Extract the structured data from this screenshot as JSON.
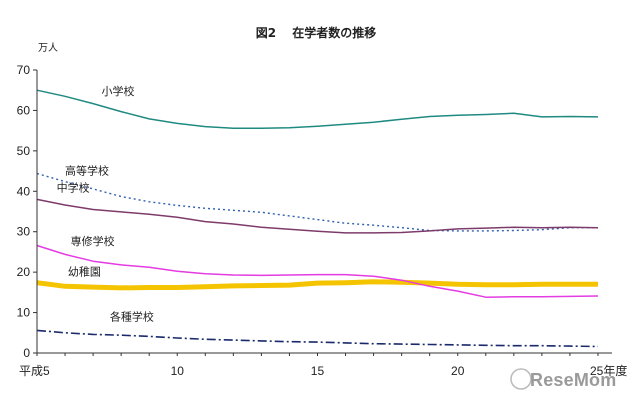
{
  "chart_data": {
    "type": "line",
    "title": "図2　 在学者数の推移",
    "ylabel": "万人",
    "ylim": [
      0,
      70
    ],
    "yticks": [
      "0",
      "10",
      "20",
      "30",
      "40",
      "50",
      "60",
      "70"
    ],
    "x": [
      5,
      6,
      7,
      8,
      9,
      10,
      11,
      12,
      13,
      14,
      15,
      16,
      17,
      18,
      19,
      20,
      21,
      22,
      23,
      24,
      25
    ],
    "xlim": [
      5,
      25.5
    ],
    "xtick_labels": [
      {
        "x": 5,
        "label": "平成5"
      },
      {
        "x": 10,
        "label": "10"
      },
      {
        "x": 15,
        "label": "15"
      },
      {
        "x": 20,
        "label": "20"
      },
      {
        "x": 25,
        "label": "25年度"
      }
    ],
    "series": [
      {
        "name": "小学校",
        "color": "#1f8a82",
        "dash": "solid",
        "width": 1.5,
        "values": [
          65.0,
          63.5,
          61.7,
          59.7,
          57.9,
          56.8,
          56.0,
          55.6,
          55.6,
          55.7,
          56.1,
          56.6,
          57.1,
          57.8,
          58.5,
          58.8,
          59.0,
          59.3,
          58.4,
          58.5,
          58.4
        ]
      },
      {
        "name": "高等学校",
        "color": "#2e5fb3",
        "dash": "2,3",
        "width": 1.4,
        "values": [
          44.4,
          42.4,
          40.6,
          38.7,
          37.4,
          36.5,
          35.8,
          35.3,
          34.8,
          33.9,
          33.0,
          32.1,
          31.6,
          31.0,
          30.3,
          30.2,
          30.2,
          30.3,
          30.5,
          31.0,
          31.0
        ]
      },
      {
        "name": "中学校",
        "color": "#7d3b6a",
        "dash": "solid",
        "width": 1.5,
        "values": [
          38.0,
          36.6,
          35.5,
          34.9,
          34.3,
          33.6,
          32.5,
          31.9,
          31.1,
          30.6,
          30.1,
          29.7,
          29.7,
          29.8,
          30.2,
          30.7,
          30.9,
          31.1,
          31.0,
          31.1,
          31.0
        ]
      },
      {
        "name": "専修学校",
        "color": "#e43be3",
        "dash": "solid",
        "width": 1.5,
        "values": [
          26.6,
          24.4,
          22.7,
          21.8,
          21.2,
          20.2,
          19.6,
          19.3,
          19.2,
          19.3,
          19.4,
          19.4,
          19.0,
          18.0,
          16.5,
          15.3,
          13.8,
          13.9,
          13.9,
          14.0,
          14.1
        ]
      },
      {
        "name": "幼稚園",
        "color": "#f5c400",
        "dash": "solid",
        "width": 5,
        "values": [
          17.4,
          16.5,
          16.3,
          16.1,
          16.2,
          16.2,
          16.4,
          16.6,
          16.7,
          16.8,
          17.3,
          17.4,
          17.6,
          17.5,
          17.3,
          17.0,
          16.9,
          16.9,
          17.0,
          17.0,
          17.0
        ]
      },
      {
        "name": "各種学校",
        "color": "#1a2a6c",
        "dash": "9,3,2,3",
        "width": 1.6,
        "values": [
          5.6,
          5.0,
          4.6,
          4.4,
          4.1,
          3.7,
          3.4,
          3.2,
          3.0,
          2.8,
          2.7,
          2.5,
          2.3,
          2.2,
          2.1,
          2.0,
          1.9,
          1.8,
          1.8,
          1.7,
          1.6
        ]
      }
    ],
    "annotations": [
      {
        "series": "小学校",
        "x": 7.3,
        "y": 63.8
      },
      {
        "series": "高等学校",
        "x": 6.0,
        "y": 44.2
      },
      {
        "series": "中学校",
        "x": 5.7,
        "y": 40.0
      },
      {
        "series": "専修学校",
        "x": 6.2,
        "y": 26.7
      },
      {
        "series": "幼稚園",
        "x": 6.1,
        "y": 19.2
      },
      {
        "series": "各種学校",
        "x": 7.6,
        "y": 8.0
      }
    ],
    "watermark": "ReseMom"
  }
}
